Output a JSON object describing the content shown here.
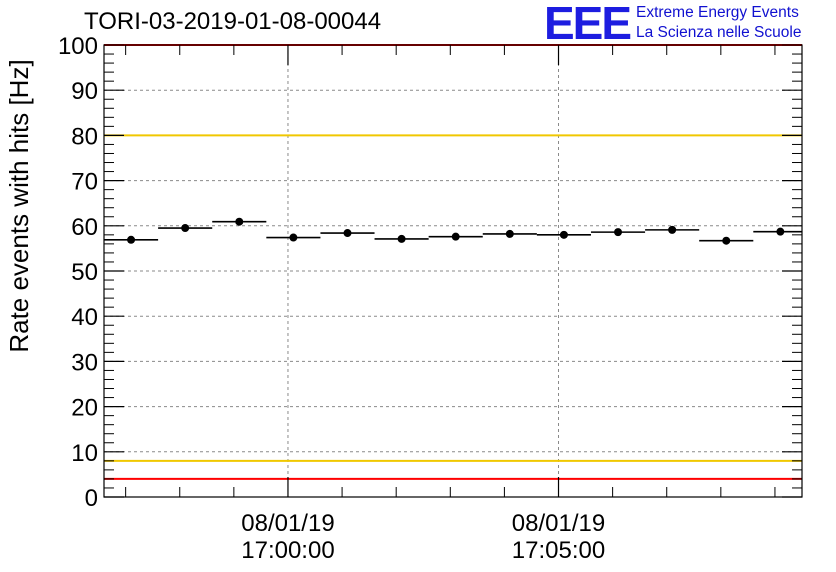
{
  "title": "TORI-03-2019-01-08-00044",
  "logo": {
    "mark": "EEE",
    "line1": "Extreme Energy Events",
    "line2": "La Scienza nelle Scuole"
  },
  "colors": {
    "red_line": "#ff0000",
    "yellow_line": "#f0c800",
    "points": "#000000",
    "logo_blue": "#1d1de0"
  },
  "chart_data": {
    "type": "scatter",
    "title": "TORI-03-2019-01-08-00044",
    "xlabel": "",
    "ylabel": "Rate events with hits [Hz]",
    "ylim": [
      0,
      100
    ],
    "yticks": [
      0,
      10,
      20,
      30,
      40,
      50,
      60,
      70,
      80,
      90,
      100
    ],
    "xlim_minutes": [
      -3.4,
      9.5
    ],
    "xtick_labels": [
      {
        "minute": 0,
        "date": "08/01/19",
        "time": "17:00:00"
      },
      {
        "minute": 5,
        "date": "08/01/19",
        "time": "17:05:00"
      }
    ],
    "grid": true,
    "bin_width_minutes": 1,
    "series": [
      {
        "name": "rate",
        "x_minutes": [
          -2.9,
          -1.9,
          -0.9,
          0.1,
          1.1,
          2.1,
          3.1,
          4.1,
          5.1,
          6.1,
          7.1,
          8.1,
          9.1
        ],
        "values": [
          56.9,
          59.5,
          60.9,
          57.4,
          58.4,
          57.1,
          57.6,
          58.2,
          58.0,
          58.6,
          59.1,
          56.7,
          58.7
        ]
      }
    ],
    "reference_lines": [
      {
        "name": "upper-red",
        "y": 100,
        "color": "red"
      },
      {
        "name": "upper-yellow",
        "y": 80,
        "color": "yellow"
      },
      {
        "name": "lower-yellow",
        "y": 8,
        "color": "yellow"
      },
      {
        "name": "lower-red",
        "y": 4,
        "color": "red"
      }
    ]
  }
}
